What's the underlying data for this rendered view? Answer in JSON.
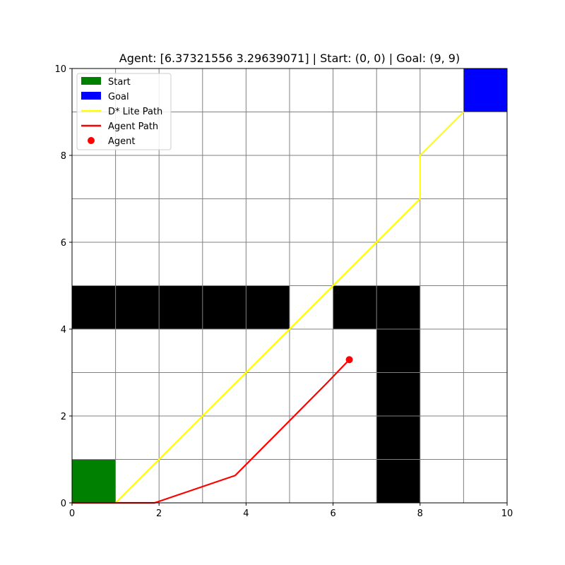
{
  "chart_data": {
    "type": "line",
    "title": "Agent: [6.37321556 3.29639071] | Start: (0, 0) | Goal: (9, 9)",
    "xlabel": "",
    "ylabel": "",
    "xlim": [
      0,
      10
    ],
    "ylim": [
      0,
      10
    ],
    "grid": true,
    "x_ticks": [
      0,
      2,
      4,
      6,
      8,
      10
    ],
    "y_ticks": [
      0,
      2,
      4,
      6,
      8,
      10
    ],
    "x_tick_labels": [
      "0",
      "2",
      "4",
      "6",
      "8",
      "10"
    ],
    "y_tick_labels": [
      "0",
      "2",
      "4",
      "6",
      "8",
      "10"
    ],
    "legend_position": "upper-left",
    "legend": [
      {
        "label": "Start",
        "kind": "patch",
        "color": "#008000"
      },
      {
        "label": "Goal",
        "kind": "patch",
        "color": "#0000ff"
      },
      {
        "label": "D* Lite Path",
        "kind": "line",
        "color": "#ffff00"
      },
      {
        "label": "Agent Path",
        "kind": "line",
        "color": "#ff0000"
      },
      {
        "label": "Agent",
        "kind": "marker",
        "color": "#ff0000"
      }
    ],
    "start_cell": {
      "x": 0,
      "y": 0,
      "w": 1,
      "h": 1,
      "color": "#008000"
    },
    "goal_cell": {
      "x": 9,
      "y": 9,
      "w": 1,
      "h": 1,
      "color": "#0000ff"
    },
    "obstacles": [
      {
        "x": 0,
        "y": 4,
        "w": 5,
        "h": 1
      },
      {
        "x": 6,
        "y": 4,
        "w": 2,
        "h": 1
      },
      {
        "x": 7,
        "y": 0,
        "w": 1,
        "h": 4
      }
    ],
    "obstacle_color": "#000000",
    "series": [
      {
        "name": "D* Lite Path",
        "color": "#ffff00",
        "x": [
          1,
          5,
          6,
          8,
          8,
          9
        ],
        "y": [
          0,
          4,
          5,
          7,
          8,
          9
        ]
      },
      {
        "name": "Agent Path",
        "color": "#ff0000",
        "x": [
          0,
          1.9,
          3.75,
          5.85,
          6.373
        ],
        "y": [
          0,
          0,
          0.63,
          2.75,
          3.296
        ]
      }
    ],
    "agent": {
      "name": "Agent",
      "x": 6.37321556,
      "y": 3.29639071,
      "color": "#ff0000"
    }
  }
}
